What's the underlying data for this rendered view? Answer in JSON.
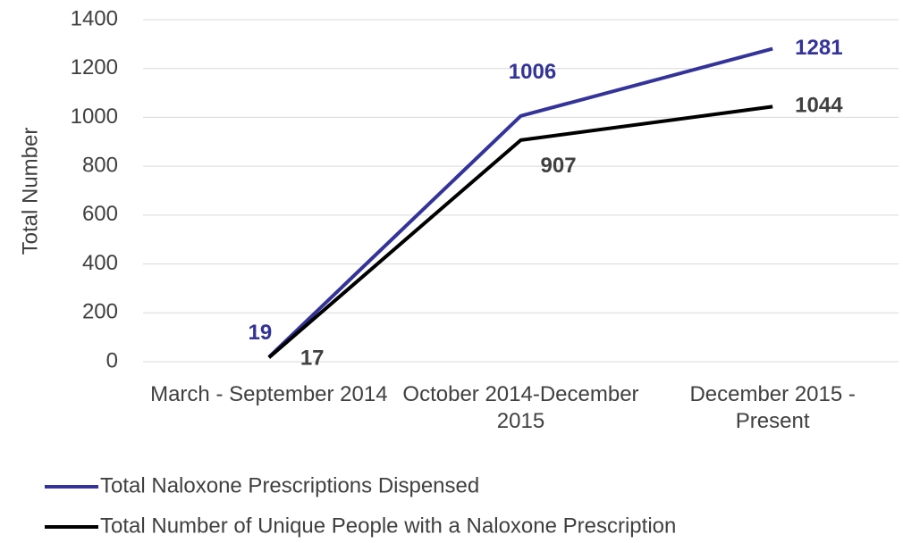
{
  "chart_data": {
    "type": "line",
    "y_label": "Total Number",
    "categories": [
      "March - September 2014",
      "October 2014-December 2015",
      "December 2015 - Present"
    ],
    "series": [
      {
        "name": "Total Naloxone Prescriptions Dispensed",
        "color": "#333399",
        "values": [
          19,
          1006,
          1281
        ]
      },
      {
        "name": "Total Number of Unique People with a Naloxone Prescription",
        "color": "#000000",
        "values": [
          17,
          907,
          1044
        ]
      }
    ],
    "ylim": [
      0,
      1400
    ],
    "yticks": [
      0,
      200,
      400,
      600,
      800,
      1000,
      1200,
      1400
    ],
    "grid": true
  }
}
